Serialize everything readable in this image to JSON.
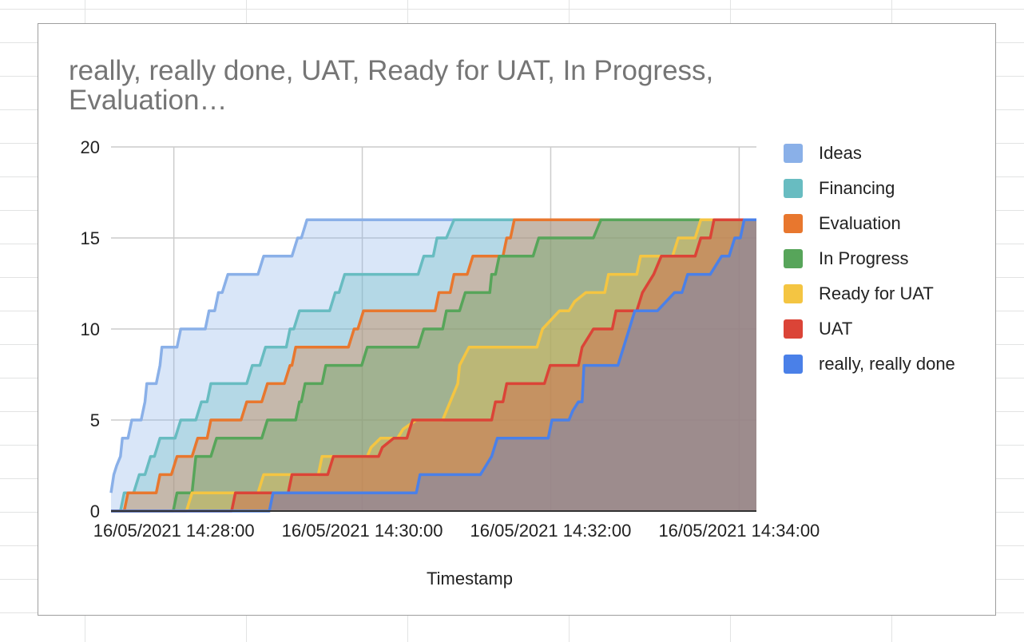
{
  "chart_data": {
    "type": "area",
    "stacked": true,
    "step": true,
    "title": "really, really done, UAT, Ready for UAT, In Progress, Evaluation…",
    "xlabel": "Timestamp",
    "ylabel": "",
    "x_unit": "minutes since 16/05/2021 14:27:20",
    "xlim": [
      0,
      6.85
    ],
    "ylim": [
      0,
      20
    ],
    "yticks": [
      "0",
      "5",
      "10",
      "15",
      "20"
    ],
    "xticks": [
      {
        "value": 0.6667,
        "label": "16/05/2021 14:28:00"
      },
      {
        "value": 2.6667,
        "label": "16/05/2021 14:30:00"
      },
      {
        "value": 4.6667,
        "label": "16/05/2021 14:32:00"
      },
      {
        "value": 6.6667,
        "label": "16/05/2021 14:34:00"
      }
    ],
    "legend_position": "right",
    "series": [
      {
        "name": "Ideas",
        "color": "#8ab0e8",
        "points": [
          [
            0,
            1
          ],
          [
            0.03,
            2
          ],
          [
            0.06,
            2.5
          ],
          [
            0.1,
            3
          ],
          [
            0.12,
            4
          ],
          [
            0.18,
            4
          ],
          [
            0.22,
            5
          ],
          [
            0.32,
            5
          ],
          [
            0.36,
            6
          ],
          [
            0.38,
            7
          ],
          [
            0.48,
            7
          ],
          [
            0.52,
            8
          ],
          [
            0.54,
            9
          ],
          [
            0.7,
            9
          ],
          [
            0.74,
            10
          ],
          [
            1.0,
            10
          ],
          [
            1.04,
            11
          ],
          [
            1.1,
            11
          ],
          [
            1.14,
            12
          ],
          [
            1.18,
            12
          ],
          [
            1.24,
            13
          ],
          [
            1.56,
            13
          ],
          [
            1.62,
            14
          ],
          [
            1.92,
            14
          ],
          [
            1.98,
            15
          ],
          [
            2.02,
            15
          ],
          [
            2.08,
            16
          ],
          [
            6.85,
            16
          ]
        ]
      },
      {
        "name": "Financing",
        "color": "#68bcc1",
        "points": [
          [
            0,
            0
          ],
          [
            0.1,
            0
          ],
          [
            0.14,
            1
          ],
          [
            0.24,
            1
          ],
          [
            0.3,
            2
          ],
          [
            0.36,
            2
          ],
          [
            0.42,
            3
          ],
          [
            0.46,
            3
          ],
          [
            0.52,
            4
          ],
          [
            0.68,
            4
          ],
          [
            0.74,
            5
          ],
          [
            0.9,
            5
          ],
          [
            0.96,
            6
          ],
          [
            1.02,
            6
          ],
          [
            1.06,
            7
          ],
          [
            1.44,
            7
          ],
          [
            1.5,
            8
          ],
          [
            1.58,
            8
          ],
          [
            1.64,
            9
          ],
          [
            1.86,
            9
          ],
          [
            1.9,
            10
          ],
          [
            1.94,
            10
          ],
          [
            2.0,
            11
          ],
          [
            2.32,
            11
          ],
          [
            2.38,
            12
          ],
          [
            2.42,
            12
          ],
          [
            2.48,
            13
          ],
          [
            3.26,
            13
          ],
          [
            3.32,
            14
          ],
          [
            3.42,
            14
          ],
          [
            3.46,
            15
          ],
          [
            3.56,
            15
          ],
          [
            3.64,
            16
          ],
          [
            6.85,
            16
          ]
        ]
      },
      {
        "name": "Evaluation",
        "color": "#e8772e",
        "points": [
          [
            0,
            0
          ],
          [
            0.14,
            0
          ],
          [
            0.18,
            1
          ],
          [
            0.48,
            1
          ],
          [
            0.52,
            2
          ],
          [
            0.64,
            2
          ],
          [
            0.7,
            3
          ],
          [
            0.86,
            3
          ],
          [
            0.92,
            4
          ],
          [
            1.02,
            4
          ],
          [
            1.06,
            5
          ],
          [
            1.38,
            5
          ],
          [
            1.44,
            6
          ],
          [
            1.6,
            6
          ],
          [
            1.66,
            7
          ],
          [
            1.84,
            7
          ],
          [
            1.9,
            8
          ],
          [
            1.92,
            8
          ],
          [
            1.96,
            9
          ],
          [
            2.52,
            9
          ],
          [
            2.58,
            10
          ],
          [
            2.62,
            10
          ],
          [
            2.68,
            11
          ],
          [
            3.44,
            11
          ],
          [
            3.48,
            12
          ],
          [
            3.6,
            12
          ],
          [
            3.64,
            13
          ],
          [
            3.78,
            13
          ],
          [
            3.84,
            14
          ],
          [
            4.16,
            14
          ],
          [
            4.2,
            15
          ],
          [
            4.24,
            15
          ],
          [
            4.28,
            16
          ],
          [
            6.85,
            16
          ]
        ]
      },
      {
        "name": "In Progress",
        "color": "#57a55a",
        "points": [
          [
            0,
            0
          ],
          [
            0.66,
            0
          ],
          [
            0.7,
            1
          ],
          [
            0.86,
            1
          ],
          [
            0.9,
            3
          ],
          [
            1.06,
            3
          ],
          [
            1.12,
            4
          ],
          [
            1.6,
            4
          ],
          [
            1.66,
            5
          ],
          [
            1.96,
            5
          ],
          [
            2.0,
            6
          ],
          [
            2.02,
            6
          ],
          [
            2.06,
            7
          ],
          [
            2.24,
            7
          ],
          [
            2.28,
            8
          ],
          [
            2.66,
            8
          ],
          [
            2.72,
            9
          ],
          [
            3.26,
            9
          ],
          [
            3.32,
            10
          ],
          [
            3.52,
            10
          ],
          [
            3.56,
            11
          ],
          [
            3.7,
            11
          ],
          [
            3.76,
            12
          ],
          [
            4.02,
            12
          ],
          [
            4.04,
            13
          ],
          [
            4.08,
            13
          ],
          [
            4.12,
            14
          ],
          [
            4.48,
            14
          ],
          [
            4.54,
            15
          ],
          [
            5.12,
            15
          ],
          [
            5.2,
            16
          ],
          [
            6.85,
            16
          ]
        ]
      },
      {
        "name": "Ready for UAT",
        "color": "#f4c542",
        "points": [
          [
            0,
            0
          ],
          [
            0.8,
            0
          ],
          [
            0.86,
            1
          ],
          [
            1.56,
            1
          ],
          [
            1.62,
            2
          ],
          [
            2.2,
            2
          ],
          [
            2.24,
            3
          ],
          [
            2.72,
            3
          ],
          [
            2.76,
            3.5
          ],
          [
            2.86,
            4
          ],
          [
            3.04,
            4
          ],
          [
            3.1,
            4.5
          ],
          [
            3.24,
            5
          ],
          [
            3.52,
            5
          ],
          [
            3.56,
            5.5
          ],
          [
            3.68,
            7
          ],
          [
            3.7,
            8
          ],
          [
            3.8,
            9
          ],
          [
            4.52,
            9
          ],
          [
            4.58,
            10
          ],
          [
            4.76,
            11
          ],
          [
            4.86,
            11
          ],
          [
            4.92,
            11.5
          ],
          [
            5.04,
            12
          ],
          [
            5.24,
            12
          ],
          [
            5.28,
            13
          ],
          [
            5.58,
            13
          ],
          [
            5.62,
            14
          ],
          [
            5.96,
            14
          ],
          [
            6.02,
            15
          ],
          [
            6.2,
            15
          ],
          [
            6.26,
            16
          ],
          [
            6.85,
            16
          ]
        ]
      },
      {
        "name": "UAT",
        "color": "#db4437",
        "points": [
          [
            0,
            0
          ],
          [
            1.28,
            0
          ],
          [
            1.32,
            1
          ],
          [
            1.88,
            1
          ],
          [
            1.92,
            2
          ],
          [
            2.3,
            2
          ],
          [
            2.36,
            3
          ],
          [
            2.84,
            3
          ],
          [
            2.88,
            3.5
          ],
          [
            3.0,
            4
          ],
          [
            3.14,
            4
          ],
          [
            3.2,
            5
          ],
          [
            4.04,
            5
          ],
          [
            4.08,
            6
          ],
          [
            4.16,
            6
          ],
          [
            4.2,
            7
          ],
          [
            4.6,
            7
          ],
          [
            4.66,
            8
          ],
          [
            4.96,
            8
          ],
          [
            5.0,
            9
          ],
          [
            5.12,
            10
          ],
          [
            5.32,
            10
          ],
          [
            5.36,
            11
          ],
          [
            5.58,
            11
          ],
          [
            5.64,
            12
          ],
          [
            5.76,
            13
          ],
          [
            5.84,
            14
          ],
          [
            6.2,
            14
          ],
          [
            6.26,
            15
          ],
          [
            6.36,
            15
          ],
          [
            6.4,
            16
          ],
          [
            6.85,
            16
          ]
        ]
      },
      {
        "name": "really, really done",
        "color": "#4a80e8",
        "points": [
          [
            0,
            0
          ],
          [
            1.68,
            0
          ],
          [
            1.72,
            1
          ],
          [
            3.24,
            1
          ],
          [
            3.28,
            2
          ],
          [
            3.92,
            2
          ],
          [
            3.98,
            2.5
          ],
          [
            4.04,
            3
          ],
          [
            4.1,
            4
          ],
          [
            4.64,
            4
          ],
          [
            4.68,
            5
          ],
          [
            4.86,
            5
          ],
          [
            4.9,
            5.5
          ],
          [
            4.96,
            6
          ],
          [
            5.0,
            6
          ],
          [
            5.02,
            8
          ],
          [
            5.38,
            8
          ],
          [
            5.44,
            9
          ],
          [
            5.5,
            10
          ],
          [
            5.56,
            11
          ],
          [
            5.8,
            11
          ],
          [
            5.98,
            12
          ],
          [
            6.06,
            12
          ],
          [
            6.12,
            13
          ],
          [
            6.36,
            13
          ],
          [
            6.42,
            13.5
          ],
          [
            6.48,
            14
          ],
          [
            6.56,
            14
          ],
          [
            6.62,
            15
          ],
          [
            6.68,
            15
          ],
          [
            6.72,
            16
          ],
          [
            6.85,
            16
          ]
        ]
      }
    ]
  }
}
